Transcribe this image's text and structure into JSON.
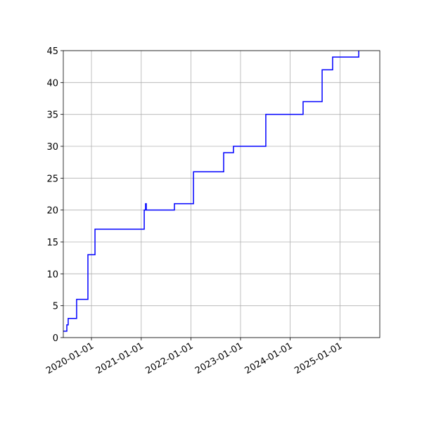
{
  "chart_data": {
    "type": "line",
    "drawstyle": "steps-post",
    "x": [
      "2019-06-08",
      "2019-07-04",
      "2019-07-14",
      "2019-09-14",
      "2019-12-06",
      "2020-01-27",
      "2021-01-23",
      "2021-02-02",
      "2021-02-07",
      "2021-09-02",
      "2022-01-20",
      "2022-08-30",
      "2022-11-10",
      "2023-07-06",
      "2024-04-05",
      "2024-08-23",
      "2024-11-08",
      "2025-05-19"
    ],
    "series": [
      {
        "color": "#0000ff",
        "values": [
          1,
          2,
          3,
          6,
          13,
          17,
          20,
          21,
          20,
          21,
          26,
          29,
          30,
          35,
          37,
          42,
          44,
          45
        ]
      }
    ],
    "xlim": [
      "2019-06-08",
      "2025-10-21"
    ],
    "xticks": [
      "2020-01-01",
      "2021-01-01",
      "2022-01-01",
      "2023-01-01",
      "2024-01-01",
      "2025-01-01"
    ],
    "ylim": [
      0,
      45
    ],
    "yticks": [
      0,
      5,
      10,
      15,
      20,
      25,
      30,
      35,
      40,
      45
    ],
    "grid": true
  }
}
